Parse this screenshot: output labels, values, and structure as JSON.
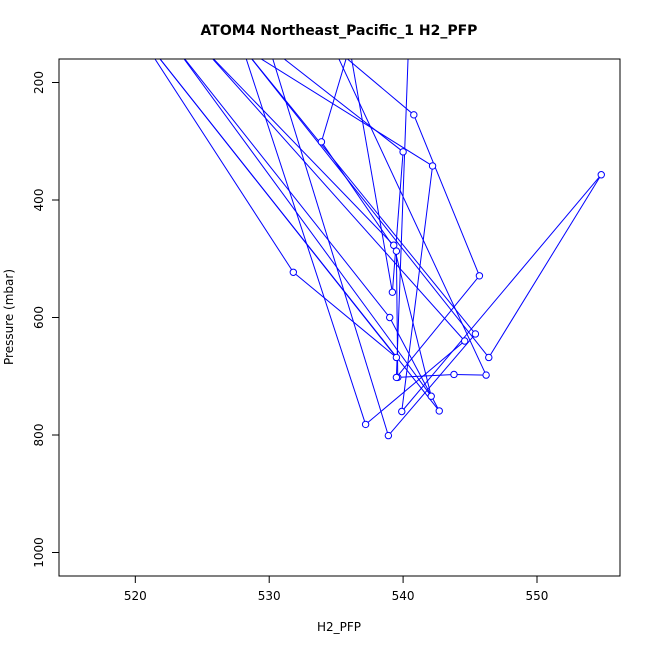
{
  "chart_data": {
    "type": "line",
    "title": "ATOM4 Northeast_Pacific_1 H2_PFP",
    "xlabel": "H2_PFP",
    "ylabel": "Pressure (mbar)",
    "xlim": [
      514.3,
      556.2
    ],
    "ylim": [
      1040,
      160
    ],
    "y_reversed": true,
    "grid": false,
    "x_ticks": [
      520,
      530,
      540,
      550
    ],
    "y_ticks": [
      200,
      400,
      600,
      800,
      1000
    ],
    "series_color": "#0000ff",
    "marker": "open-circle",
    "points": [
      {
        "x": 520.9,
        "y": 140
      },
      {
        "x": 531.8,
        "y": 523
      },
      {
        "x": 539.5,
        "y": 668
      },
      {
        "x": 521.5,
        "y": 150
      },
      {
        "x": 542.7,
        "y": 759
      },
      {
        "x": 539.0,
        "y": 600
      },
      {
        "x": 523.0,
        "y": 140
      },
      {
        "x": 542.1,
        "y": 734
      },
      {
        "x": 539.3,
        "y": 477
      },
      {
        "x": 525.0,
        "y": 140
      },
      {
        "x": 544.6,
        "y": 640
      },
      {
        "x": 537.2,
        "y": 782
      },
      {
        "x": 528.0,
        "y": 140
      },
      {
        "x": 546.4,
        "y": 668
      },
      {
        "x": 554.8,
        "y": 357
      },
      {
        "x": 539.9,
        "y": 760
      },
      {
        "x": 542.2,
        "y": 342
      },
      {
        "x": 528.0,
        "y": 140
      },
      {
        "x": 545.4,
        "y": 628
      },
      {
        "x": 538.9,
        "y": 801
      },
      {
        "x": 530.0,
        "y": 140
      },
      {
        "x": 540.0,
        "y": 318
      },
      {
        "x": 539.2,
        "y": 557
      },
      {
        "x": 536.0,
        "y": 140
      },
      {
        "x": 533.9,
        "y": 301
      },
      {
        "x": 539.5,
        "y": 487
      },
      {
        "x": 539.6,
        "y": 702
      },
      {
        "x": 543.8,
        "y": 697
      },
      {
        "x": 546.2,
        "y": 698
      },
      {
        "x": 534.8,
        "y": 140
      },
      {
        "x": 540.8,
        "y": 255
      },
      {
        "x": 545.7,
        "y": 529
      },
      {
        "x": 539.5,
        "y": 702
      },
      {
        "x": 540.4,
        "y": 140
      }
    ]
  }
}
